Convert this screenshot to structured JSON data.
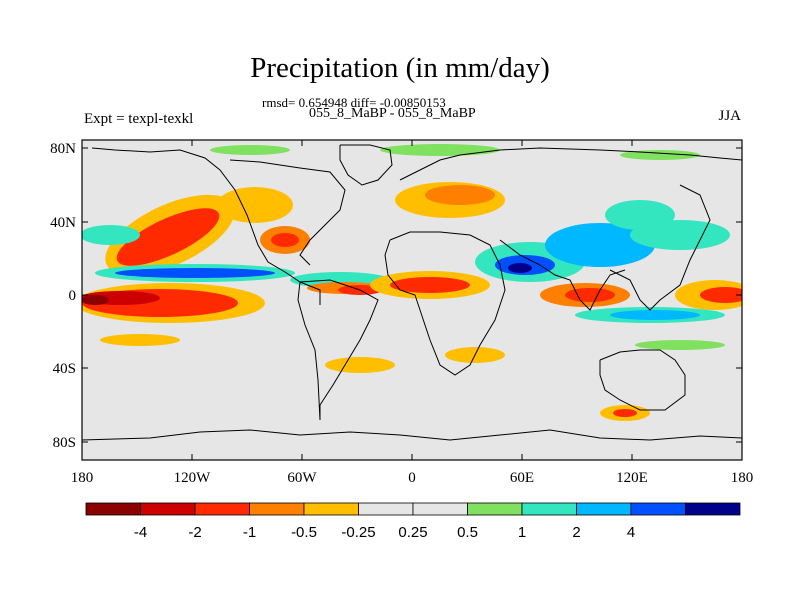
{
  "header": {
    "title": "Precipitation (in mm/day)",
    "stats": "rmsd= 0.654948 diff= -0.00850153",
    "cases": "055_8_MaBP - 055_8_MaBP",
    "experiment": "Expt = texpl-texkl",
    "season": "JJA"
  },
  "axes": {
    "x_ticks": [
      "180",
      "120W",
      "60W",
      "0",
      "60E",
      "120E",
      "180"
    ],
    "y_ticks": [
      "80N",
      "40N",
      "0",
      "40S",
      "80S"
    ]
  },
  "colorbar": {
    "colors": [
      "#8b0000",
      "#cc0000",
      "#ff2a00",
      "#ff7f00",
      "#ffbf00",
      "#e6e6e6",
      "#e6e6e6",
      "#80e060",
      "#33e6c0",
      "#00b8ff",
      "#0050ff",
      "#00008b"
    ],
    "labels": [
      "-4",
      "-2",
      "-1",
      "-0.5",
      "-0.25",
      "0.25",
      "0.5",
      "1",
      "2",
      "4"
    ]
  },
  "palette": {
    "land_background": "#e6e6e6",
    "coastline": "#000000"
  }
}
